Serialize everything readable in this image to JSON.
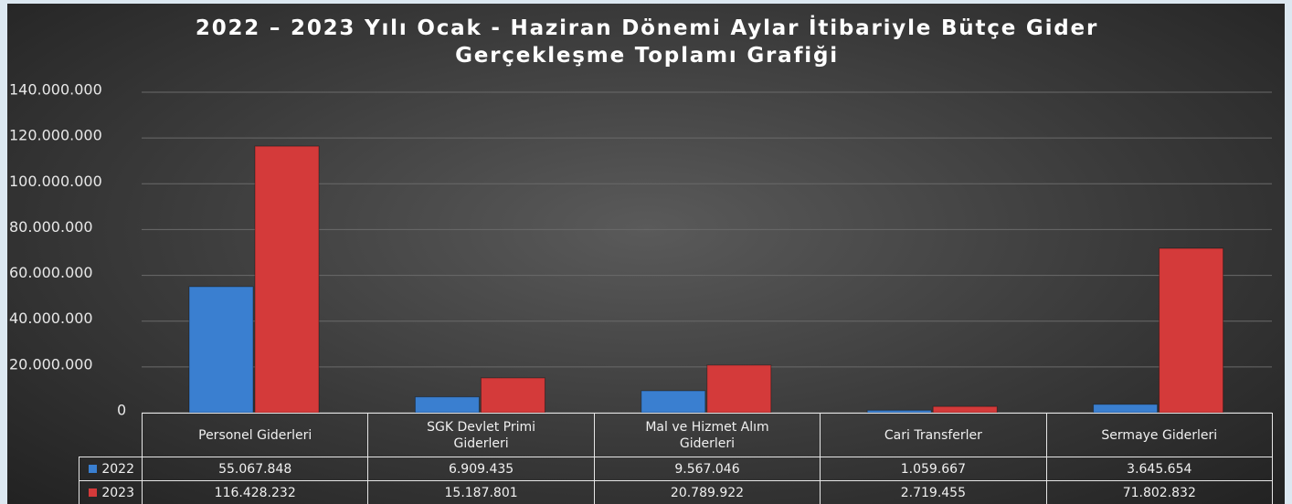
{
  "chart_data": {
    "type": "bar",
    "title": "2022 – 2023 Yılı Ocak - Haziran Dönemi Aylar İtibariyle Bütçe Gider Gerçekleşme Toplamı Grafiği",
    "categories": [
      "Personel Giderleri",
      "SGK Devlet Primi Giderleri",
      "Mal ve Hizmet Alım Giderleri",
      "Cari Transferler",
      "Sermaye Giderleri"
    ],
    "series": [
      {
        "name": "2022",
        "color": "#3a7fd0",
        "values": [
          55067848,
          6909435,
          9567046,
          1059667,
          3645654
        ],
        "value_labels": [
          "55.067.848",
          "6.909.435",
          "9.567.046",
          "1.059.667",
          "3.645.654"
        ]
      },
      {
        "name": "2023",
        "color": "#d43a3a",
        "values": [
          116428232,
          15187801,
          20789922,
          2719455,
          71802832
        ],
        "value_labels": [
          "116.428.232",
          "15.187.801",
          "20.789.922",
          "2.719.455",
          "71.802.832"
        ]
      }
    ],
    "ylim": [
      0,
      140000000
    ],
    "yticks": [
      0,
      {
        "value": 20000000,
        "label": "20.000.000"
      },
      {
        "value": 40000000,
        "label": "40.000.000"
      },
      {
        "value": 60000000,
        "label": "60.000.000"
      },
      {
        "value": 80000000,
        "label": "80.000.000"
      },
      {
        "value": 100000000,
        "label": "100.000.000"
      },
      {
        "value": 120000000,
        "label": "120.000.000"
      },
      {
        "value": 140000000,
        "label": "140.000.000"
      }
    ],
    "grid": true
  }
}
